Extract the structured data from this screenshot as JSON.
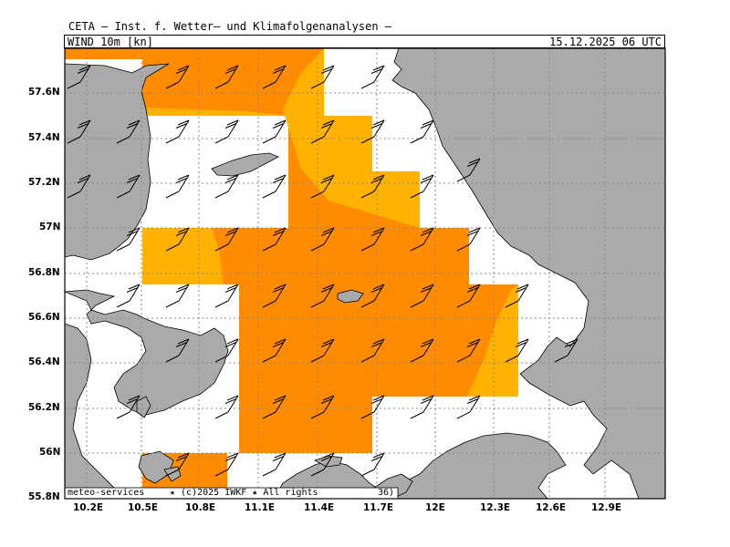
{
  "header": {
    "institute": "CETA – Inst. f. Wetter– und Klimafolgenanalysen –",
    "product": "WIND 10m [kn]",
    "datetime": "15.12.2025 06 UTC"
  },
  "map": {
    "lon_ticks": [
      "10.2E",
      "10.5E",
      "10.8E",
      "11.1E",
      "11.4E",
      "11.7E",
      "12E",
      "12.3E",
      "12.6E",
      "12.9E"
    ],
    "lat_ticks": [
      "57.6N",
      "57.4N",
      "57.2N",
      "57N",
      "56.8N",
      "56.6N",
      "56.4N",
      "56.2N",
      "56N",
      "55.8N"
    ],
    "credit_left": "meteo-services",
    "credit_main": "★ (c)2025 IWKF ★ All rights",
    "credit_tail": "36)",
    "colors": {
      "land": "#aaaaaa",
      "sea": "#ffffff",
      "wind_strong": "#ff8c00",
      "wind_moderate": "#ffb300",
      "grid": "#888888"
    }
  }
}
